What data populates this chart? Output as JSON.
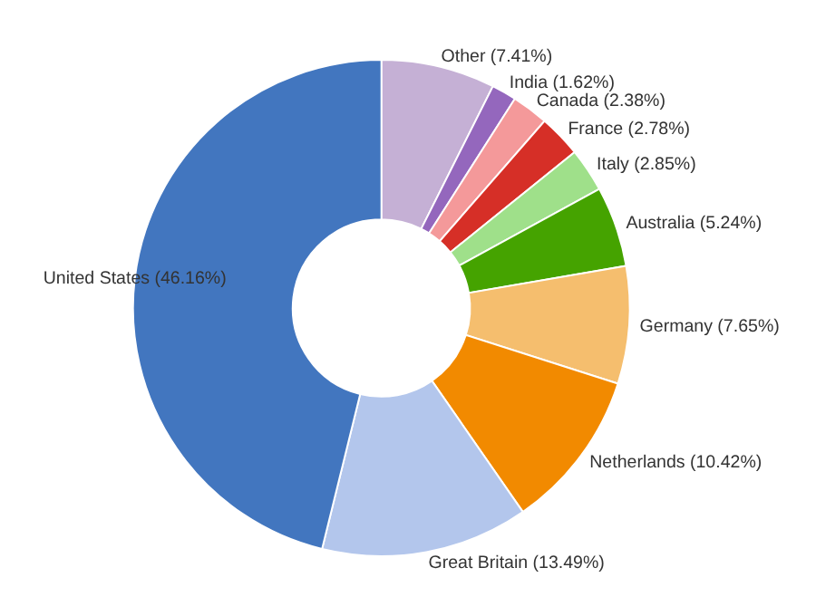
{
  "chart_data": {
    "type": "donut",
    "categories": [
      "Other (7.41%)",
      "India (1.62%)",
      "Canada (2.38%)",
      "France (2.78%)",
      "Italy (2.85%)",
      "Australia (5.24%)",
      "Germany (7.65%)",
      "Netherlands (10.42%)",
      "Great Britain (13.49%)",
      "United States (46.16%)"
    ],
    "values": [
      7.41,
      1.62,
      2.38,
      2.78,
      2.85,
      5.24,
      7.65,
      10.42,
      13.49,
      46.16
    ],
    "colors": [
      "#c5b0d5",
      "#9467bd",
      "#f4999a",
      "#d62f27",
      "#9fe08a",
      "#45a300",
      "#f5be6e",
      "#f28a00",
      "#b3c6ec",
      "#4276bf"
    ]
  }
}
